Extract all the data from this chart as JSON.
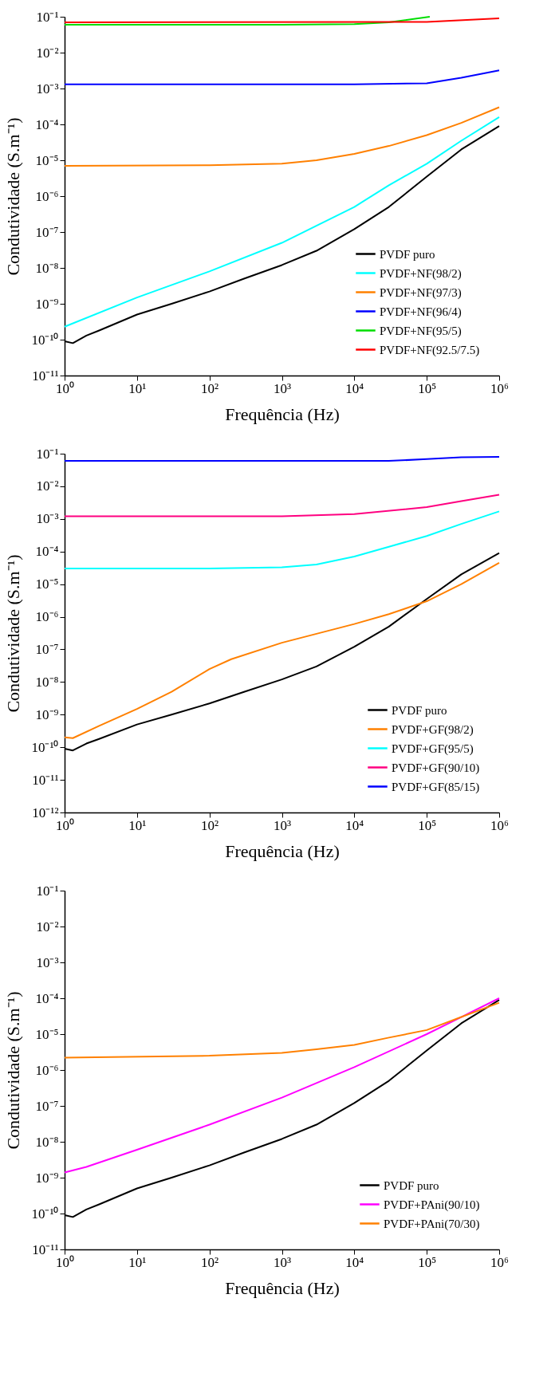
{
  "chart_data": [
    {
      "type": "line",
      "xlabel": "Frequência (Hz)",
      "ylabel": "Condutividade (S.m⁻¹)",
      "log": "xy",
      "legend": "bottom right",
      "grid": false,
      "line_style": "solid",
      "xlim": [
        1,
        1000000
      ],
      "ylim": [
        1e-11,
        0.1
      ],
      "xticks": [
        {
          "value": 1,
          "label": "10⁰"
        },
        {
          "value": 10,
          "label": "10¹"
        },
        {
          "value": 100,
          "label": "10²"
        },
        {
          "value": 1000,
          "label": "10³"
        },
        {
          "value": 10000,
          "label": "10⁴"
        },
        {
          "value": 100000,
          "label": "10⁵"
        },
        {
          "value": 1000000,
          "label": "10⁶"
        }
      ],
      "yticks": [
        {
          "value": 1e-11,
          "label": "10⁻¹¹"
        },
        {
          "value": 1e-10,
          "label": "10⁻¹⁰"
        },
        {
          "value": 1e-09,
          "label": "10⁻⁹"
        },
        {
          "value": 1e-08,
          "label": "10⁻⁸"
        },
        {
          "value": 1e-07,
          "label": "10⁻⁷"
        },
        {
          "value": 1e-06,
          "label": "10⁻⁶"
        },
        {
          "value": 1e-05,
          "label": "10⁻⁵"
        },
        {
          "value": 0.0001,
          "label": "10⁻⁴"
        },
        {
          "value": 0.001,
          "label": "10⁻³"
        },
        {
          "value": 0.01,
          "label": "10⁻²"
        },
        {
          "value": 0.1,
          "label": "10⁻¹"
        }
      ],
      "series": [
        {
          "name": "PVDF puro",
          "color": "#000000",
          "x": [
            1,
            1.3,
            2,
            3,
            10,
            30,
            100,
            300,
            1000,
            3000,
            10000,
            30000,
            100000,
            300000,
            1000000
          ],
          "values": [
            9e-11,
            8e-11,
            1.3e-10,
            1.8e-10,
            5e-10,
            1e-09,
            2.2e-09,
            5e-09,
            1.2e-08,
            3e-08,
            1.2e-07,
            5e-07,
            3.5e-06,
            2e-05,
            9e-05
          ]
        },
        {
          "name": "PVDF+NF(98/2)",
          "color": "#00ffff",
          "x": [
            1,
            10,
            100,
            1000,
            3000,
            10000,
            30000,
            100000,
            300000,
            1000000
          ],
          "values": [
            2.3e-10,
            1.5e-09,
            8e-09,
            5e-08,
            1.5e-07,
            5e-07,
            2e-06,
            8e-06,
            3.5e-05,
            0.00016
          ]
        },
        {
          "name": "PVDF+NF(97/3)",
          "color": "#ff8000",
          "x": [
            1,
            100,
            1000,
            3000,
            10000,
            30000,
            100000,
            300000,
            1000000
          ],
          "values": [
            7e-06,
            7.3e-06,
            8e-06,
            1e-05,
            1.5e-05,
            2.5e-05,
            5e-05,
            0.00011,
            0.0003
          ]
        },
        {
          "name": "PVDF+NF(96/4)",
          "color": "#0000ff",
          "x": [
            1,
            10000,
            100000,
            300000,
            1000000
          ],
          "values": [
            0.0013,
            0.0013,
            0.0014,
            0.002,
            0.0032
          ]
        },
        {
          "name": "PVDF+NF(95/5)",
          "color": "#00dd00",
          "x": [
            1,
            1000,
            10000,
            30000,
            110000
          ],
          "values": [
            0.06,
            0.06,
            0.062,
            0.07,
            0.1
          ]
        },
        {
          "name": "PVDF+NF(92.5/7.5)",
          "color": "#ff0000",
          "x": [
            1,
            100000,
            1000000
          ],
          "values": [
            0.07,
            0.072,
            0.09
          ]
        }
      ]
    },
    {
      "type": "line",
      "xlabel": "Frequência (Hz)",
      "ylabel": "Condutividade (S.m⁻¹)",
      "log": "xy",
      "legend": "bottom right",
      "grid": false,
      "line_style": "solid",
      "xlim": [
        1,
        1000000
      ],
      "ylim": [
        1e-12,
        0.1
      ],
      "xticks": [
        {
          "value": 1,
          "label": "10⁰"
        },
        {
          "value": 10,
          "label": "10¹"
        },
        {
          "value": 100,
          "label": "10²"
        },
        {
          "value": 1000,
          "label": "10³"
        },
        {
          "value": 10000,
          "label": "10⁴"
        },
        {
          "value": 100000,
          "label": "10⁵"
        },
        {
          "value": 1000000,
          "label": "10⁶"
        }
      ],
      "yticks": [
        {
          "value": 1e-12,
          "label": "10⁻¹²"
        },
        {
          "value": 1e-11,
          "label": "10⁻¹¹"
        },
        {
          "value": 1e-10,
          "label": "10⁻¹⁰"
        },
        {
          "value": 1e-09,
          "label": "10⁻⁹"
        },
        {
          "value": 1e-08,
          "label": "10⁻⁸"
        },
        {
          "value": 1e-07,
          "label": "10⁻⁷"
        },
        {
          "value": 1e-06,
          "label": "10⁻⁶"
        },
        {
          "value": 1e-05,
          "label": "10⁻⁵"
        },
        {
          "value": 0.0001,
          "label": "10⁻⁴"
        },
        {
          "value": 0.001,
          "label": "10⁻³"
        },
        {
          "value": 0.01,
          "label": "10⁻²"
        },
        {
          "value": 0.1,
          "label": "10⁻¹"
        }
      ],
      "series": [
        {
          "name": "PVDF puro",
          "color": "#000000",
          "x": [
            1,
            1.3,
            2,
            3,
            10,
            30,
            100,
            300,
            1000,
            3000,
            10000,
            30000,
            100000,
            300000,
            1000000
          ],
          "values": [
            9e-11,
            8e-11,
            1.3e-10,
            1.8e-10,
            5e-10,
            1e-09,
            2.2e-09,
            5e-09,
            1.2e-08,
            3e-08,
            1.2e-07,
            5e-07,
            3.5e-06,
            2e-05,
            9e-05
          ]
        },
        {
          "name": "PVDF+GF(98/2)",
          "color": "#ff8000",
          "x": [
            1,
            1.3,
            3,
            10,
            30,
            100,
            200,
            1000,
            10000,
            30000,
            100000,
            300000,
            1000000
          ],
          "values": [
            2e-10,
            1.9e-10,
            4.5e-10,
            1.5e-09,
            5e-09,
            2.5e-08,
            5e-08,
            1.6e-07,
            6e-07,
            1.2e-06,
            3e-06,
            1e-05,
            4.5e-05
          ]
        },
        {
          "name": "PVDF+GF(95/5)",
          "color": "#00ffff",
          "x": [
            1,
            100,
            1000,
            3000,
            10000,
            30000,
            100000,
            300000,
            1000000
          ],
          "values": [
            3e-05,
            3e-05,
            3.3e-05,
            4e-05,
            7e-05,
            0.00014,
            0.0003,
            0.0007,
            0.0017
          ]
        },
        {
          "name": "PVDF+GF(90/10)",
          "color": "#ff0080",
          "x": [
            1,
            1000,
            10000,
            100000,
            300000,
            1000000
          ],
          "values": [
            0.0012,
            0.0012,
            0.0014,
            0.0023,
            0.0035,
            0.0055
          ]
        },
        {
          "name": "PVDF+GF(85/15)",
          "color": "#0000ff",
          "x": [
            1,
            30000,
            100000,
            300000,
            1000000
          ],
          "values": [
            0.06,
            0.06,
            0.068,
            0.078,
            0.08
          ]
        }
      ]
    },
    {
      "type": "line",
      "xlabel": "Frequência (Hz)",
      "ylabel": "Condutividade (S.m⁻¹)",
      "log": "xy",
      "legend": "bottom right",
      "grid": false,
      "line_style": "solid",
      "xlim": [
        1,
        1000000
      ],
      "ylim": [
        1e-11,
        0.1
      ],
      "xticks": [
        {
          "value": 1,
          "label": "10⁰"
        },
        {
          "value": 10,
          "label": "10¹"
        },
        {
          "value": 100,
          "label": "10²"
        },
        {
          "value": 1000,
          "label": "10³"
        },
        {
          "value": 10000,
          "label": "10⁴"
        },
        {
          "value": 100000,
          "label": "10⁵"
        },
        {
          "value": 1000000,
          "label": "10⁶"
        }
      ],
      "yticks": [
        {
          "value": 1e-11,
          "label": "10⁻¹¹"
        },
        {
          "value": 1e-10,
          "label": "10⁻¹⁰"
        },
        {
          "value": 1e-09,
          "label": "10⁻⁹"
        },
        {
          "value": 1e-08,
          "label": "10⁻⁸"
        },
        {
          "value": 1e-07,
          "label": "10⁻⁷"
        },
        {
          "value": 1e-06,
          "label": "10⁻⁶"
        },
        {
          "value": 1e-05,
          "label": "10⁻⁵"
        },
        {
          "value": 0.0001,
          "label": "10⁻⁴"
        },
        {
          "value": 0.001,
          "label": "10⁻³"
        },
        {
          "value": 0.01,
          "label": "10⁻²"
        },
        {
          "value": 0.1,
          "label": "10⁻¹"
        }
      ],
      "series": [
        {
          "name": "PVDF puro",
          "color": "#000000",
          "x": [
            1,
            1.3,
            2,
            3,
            10,
            30,
            100,
            300,
            1000,
            3000,
            10000,
            30000,
            100000,
            300000,
            1000000
          ],
          "values": [
            9e-11,
            8e-11,
            1.3e-10,
            1.8e-10,
            5e-10,
            1e-09,
            2.2e-09,
            5e-09,
            1.2e-08,
            3e-08,
            1.2e-07,
            5e-07,
            3.5e-06,
            2e-05,
            9e-05
          ]
        },
        {
          "name": "PVDF+PAni(90/10)",
          "color": "#ff00ff",
          "x": [
            1,
            2,
            10,
            100,
            1000,
            10000,
            100000,
            300000,
            1000000
          ],
          "values": [
            1.4e-09,
            2e-09,
            6e-09,
            3e-08,
            1.7e-07,
            1.2e-06,
            1e-05,
            3e-05,
            0.0001
          ]
        },
        {
          "name": "PVDF+PAni(70/30)",
          "color": "#ff8000",
          "x": [
            1,
            100,
            1000,
            3000,
            10000,
            30000,
            100000,
            300000,
            1000000
          ],
          "values": [
            2.2e-06,
            2.5e-06,
            3e-06,
            3.8e-06,
            5e-06,
            8e-06,
            1.3e-05,
            3e-05,
            7.5e-05
          ]
        }
      ]
    }
  ]
}
